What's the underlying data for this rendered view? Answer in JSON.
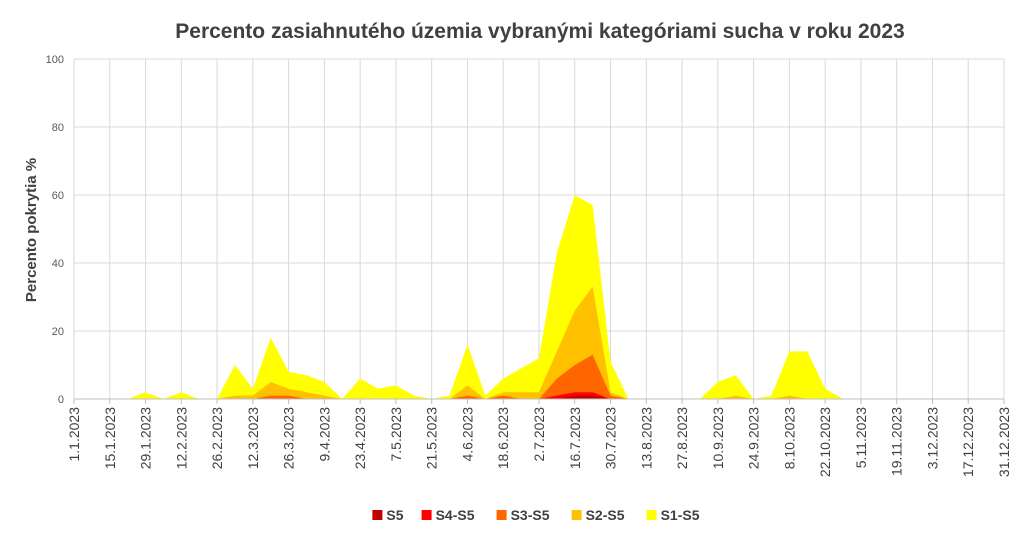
{
  "chart_data": {
    "type": "area",
    "title": "Percento zasiahnutého územia vybranými kategóriami sucha v roku 2023",
    "ylabel": "Percento pokrytia %",
    "xlabel": "",
    "ylim": [
      0,
      100
    ],
    "yticks": [
      0,
      20,
      40,
      60,
      80,
      100
    ],
    "grid": true,
    "legend_position": "bottom",
    "xticks": [
      "1.1.2023",
      "15.1.2023",
      "29.1.2023",
      "12.2.2023",
      "26.2.2023",
      "12.3.2023",
      "26.3.2023",
      "9.4.2023",
      "23.4.2023",
      "7.5.2023",
      "21.5.2023",
      "4.6.2023",
      "18.6.2023",
      "2.7.2023",
      "16.7.2023",
      "30.7.2023",
      "13.8.2023",
      "27.8.2023",
      "10.9.2023",
      "24.9.2023",
      "8.10.2023",
      "22.10.2023",
      "5.11.2023",
      "19.11.2023",
      "3.12.2023",
      "17.12.2023",
      "31.12.2023"
    ],
    "x": [
      "1.1.2023",
      "8.1.2023",
      "15.1.2023",
      "22.1.2023",
      "29.1.2023",
      "5.2.2023",
      "12.2.2023",
      "19.2.2023",
      "26.2.2023",
      "5.3.2023",
      "12.3.2023",
      "19.3.2023",
      "26.3.2023",
      "2.4.2023",
      "9.4.2023",
      "16.4.2023",
      "23.4.2023",
      "30.4.2023",
      "7.5.2023",
      "14.5.2023",
      "21.5.2023",
      "28.5.2023",
      "4.6.2023",
      "11.6.2023",
      "18.6.2023",
      "25.6.2023",
      "2.7.2023",
      "9.7.2023",
      "16.7.2023",
      "23.7.2023",
      "30.7.2023",
      "6.8.2023",
      "13.8.2023",
      "20.8.2023",
      "27.8.2023",
      "3.9.2023",
      "10.9.2023",
      "17.9.2023",
      "24.9.2023",
      "1.10.2023",
      "8.10.2023",
      "15.10.2023",
      "22.10.2023",
      "29.10.2023",
      "5.11.2023",
      "12.11.2023",
      "19.11.2023",
      "26.11.2023",
      "3.12.2023",
      "10.12.2023",
      "17.12.2023",
      "24.12.2023",
      "31.12.2023"
    ],
    "series": [
      {
        "name": "S1-S5",
        "color": "#ffff00",
        "values": [
          0,
          0,
          0,
          0,
          2,
          0,
          2,
          0,
          0,
          10,
          3,
          18,
          8,
          7,
          5,
          0,
          6,
          3,
          4,
          1,
          0,
          1,
          16,
          1,
          6,
          9,
          12,
          43,
          60,
          57,
          11,
          0,
          0,
          0,
          0,
          0,
          5,
          7,
          0,
          1,
          14,
          14,
          3,
          0,
          0,
          0,
          0,
          0,
          0,
          0,
          0,
          0,
          0
        ]
      },
      {
        "name": "S2-S5",
        "color": "#ffc000",
        "values": [
          0,
          0,
          0,
          0,
          0,
          0,
          0,
          0,
          0,
          1,
          1,
          5,
          3,
          2,
          1,
          0,
          0,
          0,
          0,
          0,
          0,
          0,
          4,
          0,
          2,
          2,
          2,
          14,
          26,
          33,
          2,
          0,
          0,
          0,
          0,
          0,
          0,
          1,
          0,
          0,
          1,
          0,
          0,
          0,
          0,
          0,
          0,
          0,
          0,
          0,
          0,
          0,
          0
        ]
      },
      {
        "name": "S3-S5",
        "color": "#ff6600",
        "values": [
          0,
          0,
          0,
          0,
          0,
          0,
          0,
          0,
          0,
          0,
          0,
          1,
          1,
          0,
          0,
          0,
          0,
          0,
          0,
          0,
          0,
          0,
          1,
          0,
          1,
          0,
          0,
          6,
          10,
          13,
          1,
          0,
          0,
          0,
          0,
          0,
          0,
          0,
          0,
          0,
          0,
          0,
          0,
          0,
          0,
          0,
          0,
          0,
          0,
          0,
          0,
          0,
          0
        ]
      },
      {
        "name": "S4-S5",
        "color": "#ff0000",
        "values": [
          0,
          0,
          0,
          0,
          0,
          0,
          0,
          0,
          0,
          0,
          0,
          0,
          0,
          0,
          0,
          0,
          0,
          0,
          0,
          0,
          0,
          0,
          0,
          0,
          0,
          0,
          0,
          1,
          2,
          2,
          0,
          0,
          0,
          0,
          0,
          0,
          0,
          0,
          0,
          0,
          0,
          0,
          0,
          0,
          0,
          0,
          0,
          0,
          0,
          0,
          0,
          0,
          0
        ]
      },
      {
        "name": "S5",
        "color": "#c00000",
        "values": [
          0,
          0,
          0,
          0,
          0,
          0,
          0,
          0,
          0,
          0,
          0,
          0,
          0,
          0,
          0,
          0,
          0,
          0,
          0,
          0,
          0,
          0,
          0,
          0,
          0,
          0,
          0,
          0,
          1,
          1,
          0,
          0,
          0,
          0,
          0,
          0,
          0,
          0,
          0,
          0,
          0,
          0,
          0,
          0,
          0,
          0,
          0,
          0,
          0,
          0,
          0,
          0,
          0
        ]
      }
    ],
    "legend": [
      "S5",
      "S4-S5",
      "S3-S5",
      "S2-S5",
      "S1-S5"
    ]
  }
}
